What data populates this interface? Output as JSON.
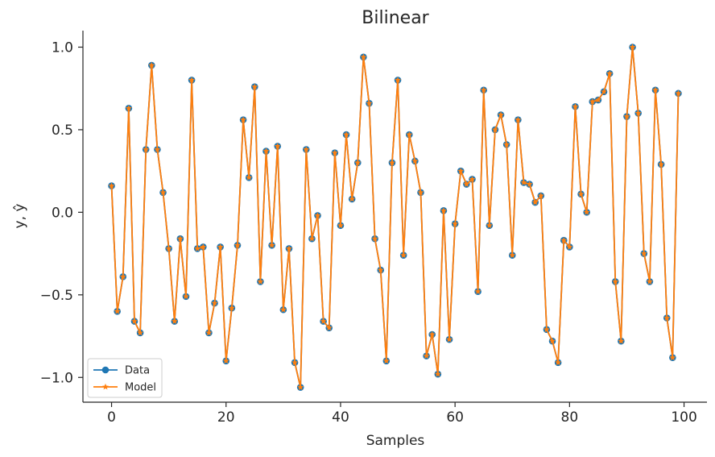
{
  "chart_data": {
    "type": "line",
    "title": "Bilinear",
    "xlabel": "Samples",
    "ylabel": "y, ŷ",
    "xlim": [
      -5,
      104
    ],
    "ylim": [
      -1.15,
      1.1
    ],
    "xticks": [
      0,
      20,
      40,
      60,
      80,
      100
    ],
    "xtick_labels": [
      "0",
      "20",
      "40",
      "60",
      "80",
      "100"
    ],
    "yticks": [
      -1.0,
      -0.5,
      0.0,
      0.5,
      1.0
    ],
    "ytick_labels": [
      "−1.0",
      "−0.5",
      "0.0",
      "0.5",
      "1.0"
    ],
    "grid": false,
    "legend_position": "lower-left",
    "series": [
      {
        "name": "Data",
        "marker": "circle",
        "color": "#1f77b4",
        "values": [
          0.16,
          -0.6,
          -0.39,
          0.63,
          -0.66,
          -0.73,
          0.38,
          0.89,
          0.38,
          0.12,
          -0.22,
          -0.66,
          -0.16,
          -0.51,
          0.8,
          -0.22,
          -0.21,
          -0.73,
          -0.55,
          -0.21,
          -0.9,
          -0.58,
          -0.2,
          0.56,
          0.21,
          0.76,
          -0.42,
          0.37,
          -0.2,
          0.4,
          -0.59,
          -0.22,
          -0.91,
          -1.06,
          0.38,
          -0.16,
          -0.02,
          -0.66,
          -0.7,
          0.36,
          -0.08,
          0.47,
          0.08,
          0.3,
          0.94,
          0.66,
          -0.16,
          -0.35,
          -0.9,
          0.3,
          0.8,
          -0.26,
          0.47,
          0.31,
          0.12,
          -0.87,
          -0.74,
          -0.98,
          0.01,
          -0.77,
          -0.07,
          0.25,
          0.17,
          0.2,
          -0.48,
          0.74,
          -0.08,
          0.5,
          0.59,
          0.41,
          -0.26,
          0.56,
          0.18,
          0.17,
          0.06,
          0.1,
          -0.71,
          -0.78,
          -0.91,
          -0.17,
          -0.21,
          0.64,
          0.11,
          0.0,
          0.67,
          0.68,
          0.73,
          0.84,
          -0.42,
          -0.78,
          0.58,
          1.0,
          0.6,
          -0.25,
          -0.42,
          0.74,
          0.29,
          -0.64,
          -0.88,
          0.72
        ]
      },
      {
        "name": "Model",
        "marker": "star",
        "color": "#ff7f0e",
        "values": [
          0.16,
          -0.6,
          -0.39,
          0.63,
          -0.66,
          -0.73,
          0.38,
          0.89,
          0.38,
          0.12,
          -0.22,
          -0.66,
          -0.16,
          -0.51,
          0.8,
          -0.22,
          -0.21,
          -0.73,
          -0.55,
          -0.21,
          -0.9,
          -0.58,
          -0.2,
          0.56,
          0.21,
          0.76,
          -0.42,
          0.37,
          -0.2,
          0.4,
          -0.59,
          -0.22,
          -0.91,
          -1.06,
          0.38,
          -0.16,
          -0.02,
          -0.66,
          -0.7,
          0.36,
          -0.08,
          0.47,
          0.08,
          0.3,
          0.94,
          0.66,
          -0.16,
          -0.35,
          -0.9,
          0.3,
          0.8,
          -0.26,
          0.47,
          0.31,
          0.12,
          -0.87,
          -0.74,
          -0.98,
          0.01,
          -0.77,
          -0.07,
          0.25,
          0.17,
          0.2,
          -0.48,
          0.74,
          -0.08,
          0.5,
          0.59,
          0.41,
          -0.26,
          0.56,
          0.18,
          0.17,
          0.06,
          0.1,
          -0.71,
          -0.78,
          -0.91,
          -0.17,
          -0.21,
          0.64,
          0.11,
          0.0,
          0.67,
          0.68,
          0.73,
          0.84,
          -0.42,
          -0.78,
          0.58,
          1.0,
          0.6,
          -0.25,
          -0.42,
          0.74,
          0.29,
          -0.64,
          -0.88,
          0.72
        ]
      }
    ]
  }
}
